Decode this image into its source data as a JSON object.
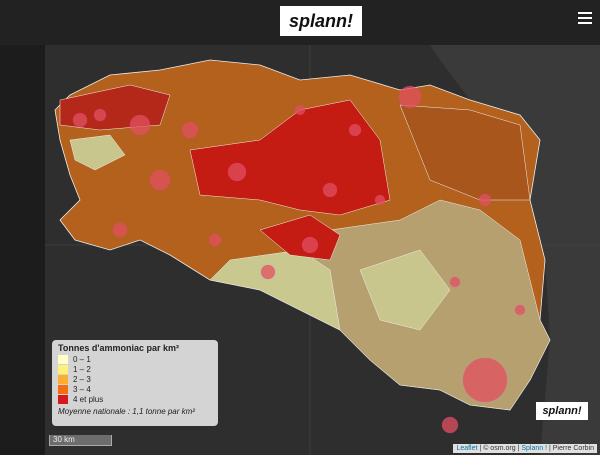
{
  "header": {
    "logo": "splann!"
  },
  "legend": {
    "title": "Tonnes d'ammoniac par km²",
    "items": [
      {
        "label": "0 – 1",
        "color": "#ffffcc"
      },
      {
        "label": "1 – 2",
        "color": "#fff07a"
      },
      {
        "label": "2 – 3",
        "color": "#fdae30"
      },
      {
        "label": "3 – 4",
        "color": "#f46d0f"
      },
      {
        "label": "4 et plus",
        "color": "#d7191c"
      }
    ],
    "note": "Moyenne nationale : 1,1 tonne par km²"
  },
  "scale": "30 km",
  "watermark": "splann!",
  "attribution": {
    "links": [
      "Leaflet",
      "© osm.org",
      "Splann !",
      "Pierre Corbin"
    ],
    "separator": "|"
  }
}
